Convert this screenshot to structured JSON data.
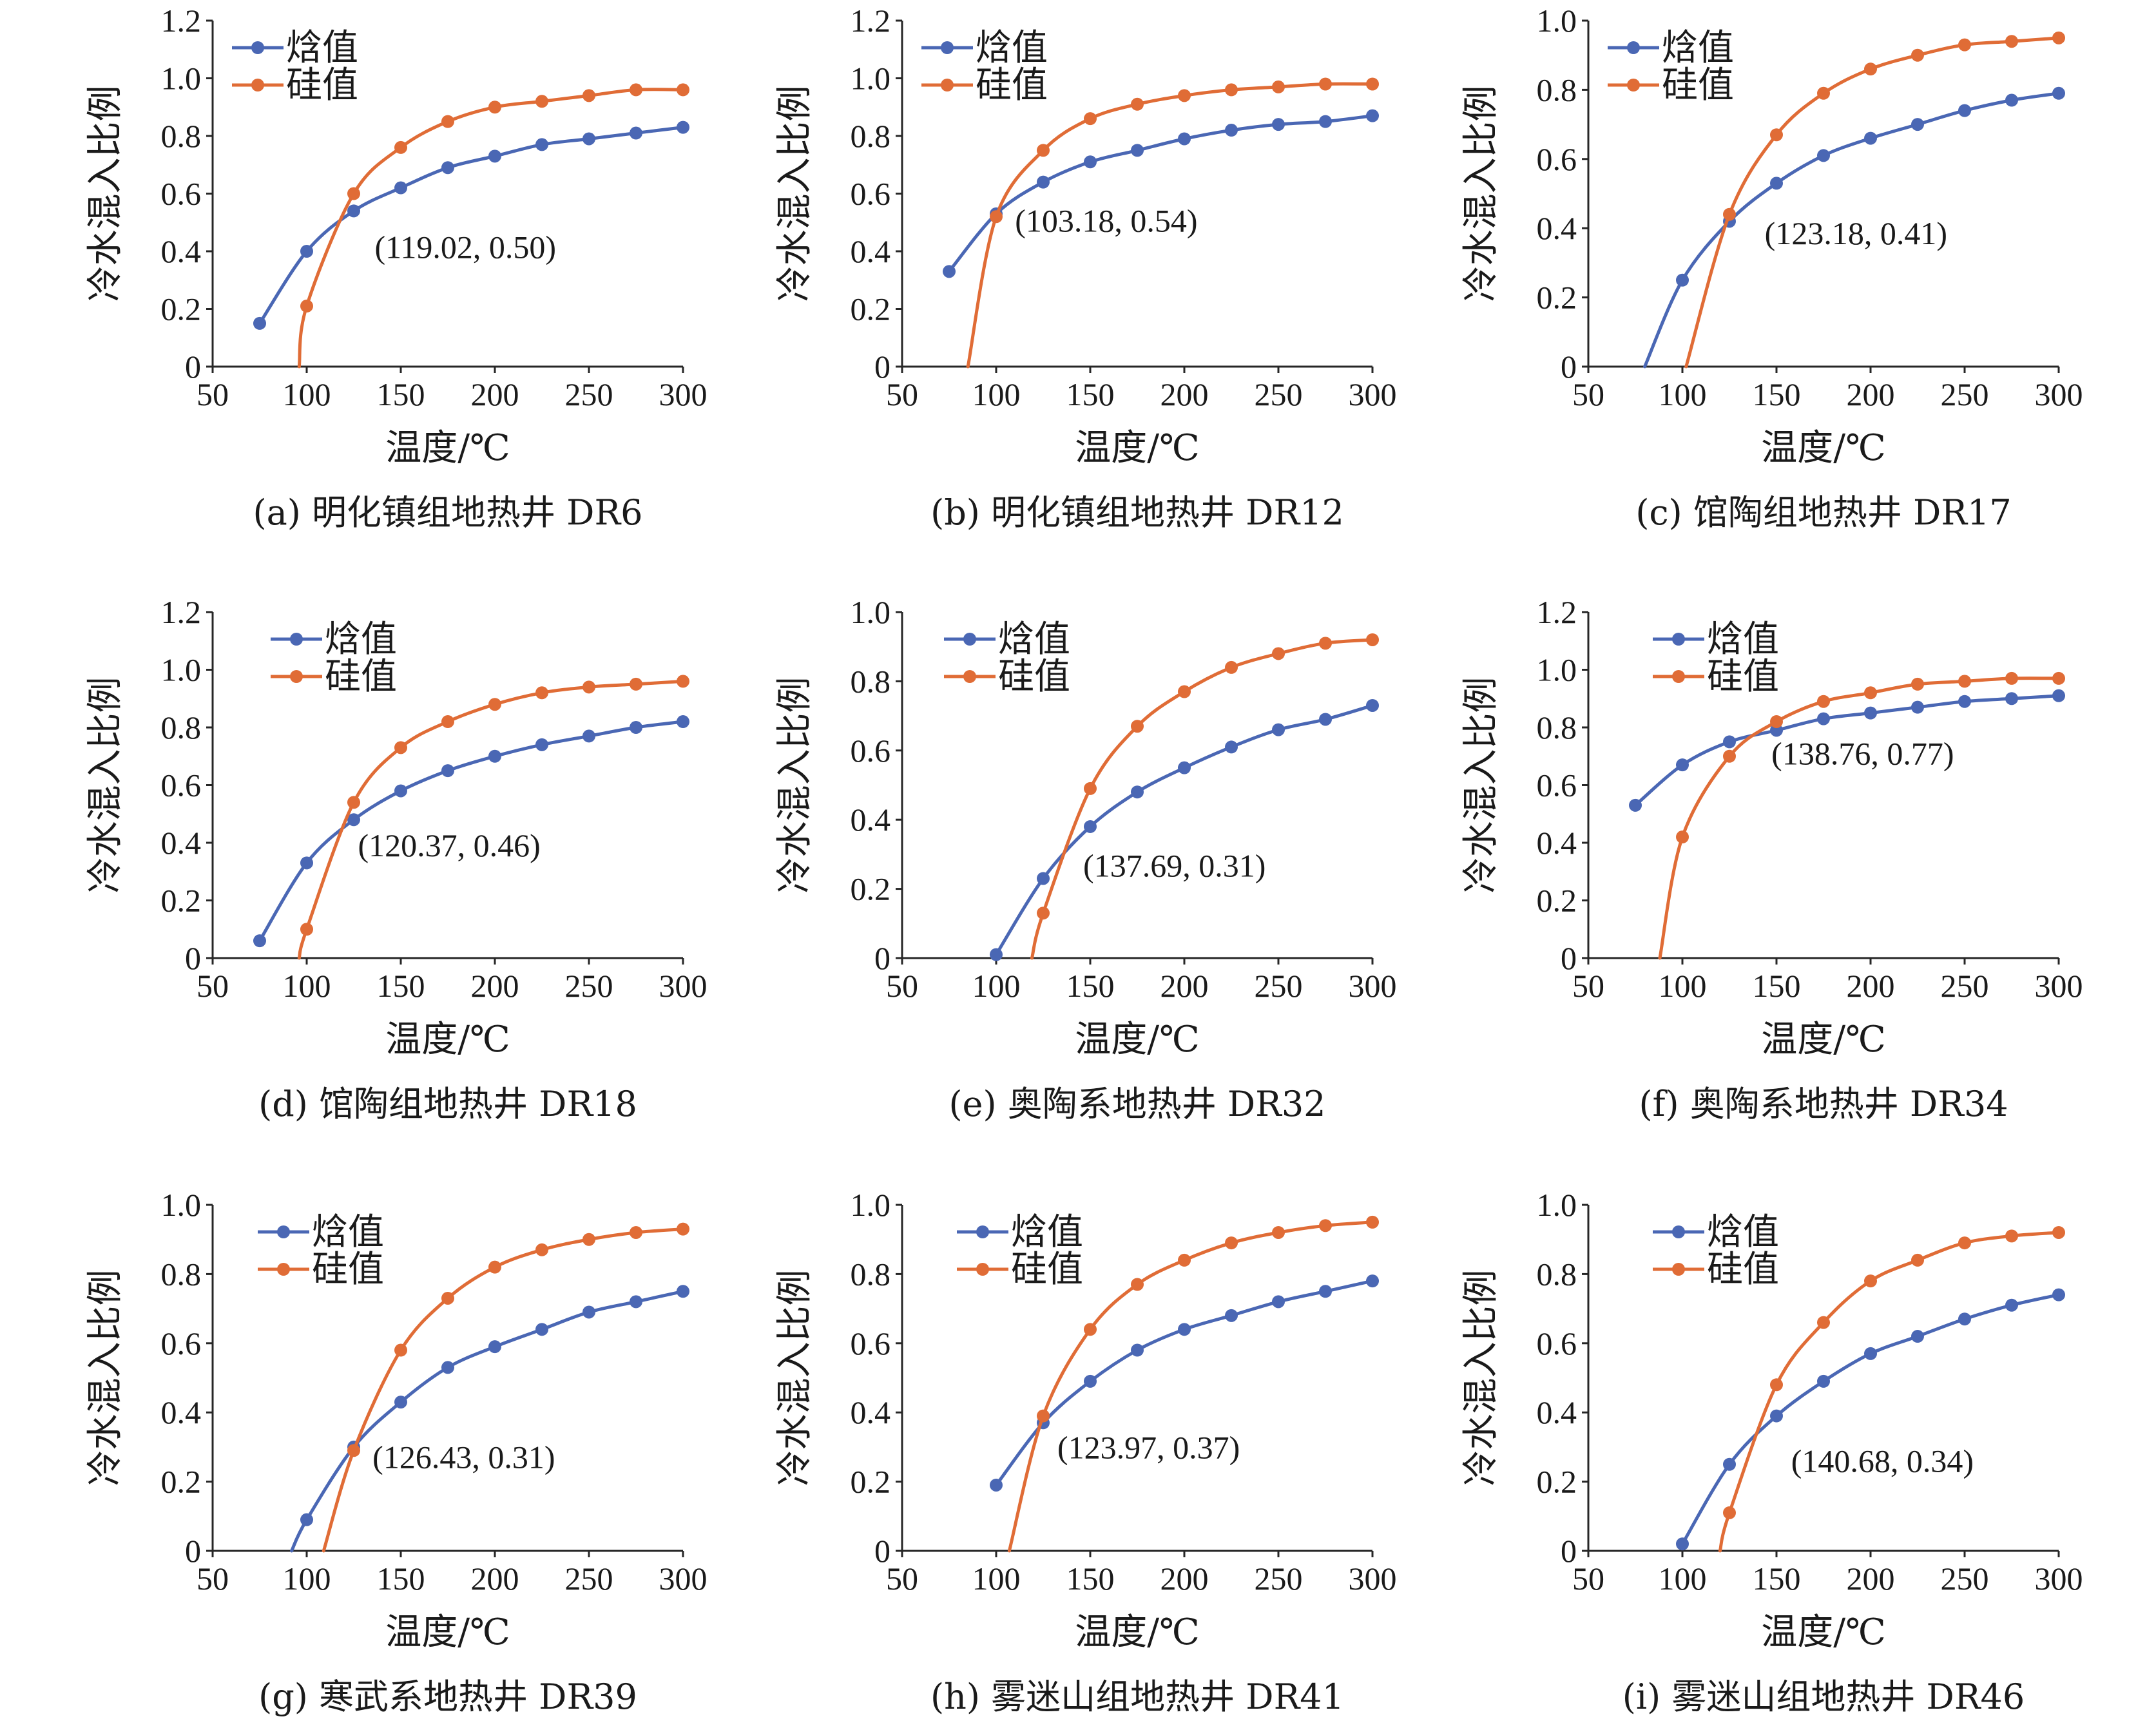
{
  "figure": {
    "colors": {
      "enthalpy": "#4a67b4",
      "silica": "#e06c36",
      "axis": "#262626"
    }
  },
  "chart_data": [
    {
      "type": "line",
      "caption": "(a) 明化镇组地热井 DR6",
      "xlabel": "温度/℃",
      "ylabel": "冷水混入比例",
      "xlim": [
        50,
        300
      ],
      "xticks": [
        "50",
        "100",
        "150",
        "200",
        "250",
        "300"
      ],
      "ylim": [
        0,
        1.2
      ],
      "yticks": [
        "0",
        "0.2",
        "0.4",
        "0.6",
        "0.8",
        "1.0",
        "1.2"
      ],
      "legend": [
        "焓值",
        "硅值"
      ],
      "series": [
        {
          "name": "焓值",
          "color": "#4a67b4",
          "x": [
            75,
            100,
            125,
            150,
            175,
            200,
            225,
            250,
            275,
            300
          ],
          "y": [
            0.15,
            0.4,
            0.54,
            0.62,
            0.69,
            0.73,
            0.77,
            0.79,
            0.81,
            0.83
          ]
        },
        {
          "name": "硅值",
          "color": "#e06c36",
          "line_start": [
            96,
            0.0
          ],
          "x": [
            100,
            125,
            150,
            175,
            200,
            225,
            250,
            275,
            300
          ],
          "y": [
            0.21,
            0.6,
            0.76,
            0.85,
            0.9,
            0.92,
            0.94,
            0.96,
            0.96
          ]
        }
      ],
      "annotation": {
        "text": "(119.02, 0.50)",
        "x": 119.02,
        "y": 0.5
      }
    },
    {
      "type": "line",
      "caption": "(b) 明化镇组地热井 DR12",
      "xlabel": "温度/℃",
      "ylabel": "冷水混入比例",
      "xlim": [
        50,
        300
      ],
      "xticks": [
        "50",
        "100",
        "150",
        "200",
        "250",
        "300"
      ],
      "ylim": [
        0,
        1.2
      ],
      "yticks": [
        "0",
        "0.2",
        "0.4",
        "0.6",
        "0.8",
        "1.0",
        "1.2"
      ],
      "legend": [
        "焓值",
        "硅值"
      ],
      "series": [
        {
          "name": "焓值",
          "color": "#4a67b4",
          "x": [
            75,
            100,
            125,
            150,
            175,
            200,
            225,
            250,
            275,
            300
          ],
          "y": [
            0.33,
            0.53,
            0.64,
            0.71,
            0.75,
            0.79,
            0.82,
            0.84,
            0.85,
            0.87
          ]
        },
        {
          "name": "硅值",
          "color": "#e06c36",
          "line_start": [
            85,
            0.0
          ],
          "x": [
            100,
            125,
            150,
            175,
            200,
            225,
            250,
            275,
            300
          ],
          "y": [
            0.52,
            0.75,
            0.86,
            0.91,
            0.94,
            0.96,
            0.97,
            0.98,
            0.98
          ]
        }
      ],
      "annotation": {
        "text": "(103.18, 0.54)",
        "x": 103.18,
        "y": 0.54
      }
    },
    {
      "type": "line",
      "caption": "(c) 馆陶组地热井 DR17",
      "xlabel": "温度/℃",
      "ylabel": "冷水混入比例",
      "xlim": [
        50,
        300
      ],
      "xticks": [
        "50",
        "100",
        "150",
        "200",
        "250",
        "300"
      ],
      "ylim": [
        0,
        1.0
      ],
      "yticks": [
        "0",
        "0.2",
        "0.4",
        "0.6",
        "0.8",
        "1.0"
      ],
      "legend": [
        "焓值",
        "硅值"
      ],
      "series": [
        {
          "name": "焓值",
          "color": "#4a67b4",
          "line_start": [
            80,
            0.0
          ],
          "x": [
            100,
            125,
            150,
            175,
            200,
            225,
            250,
            275,
            300
          ],
          "y": [
            0.25,
            0.42,
            0.53,
            0.61,
            0.66,
            0.7,
            0.74,
            0.77,
            0.79
          ]
        },
        {
          "name": "硅值",
          "color": "#e06c36",
          "line_start": [
            102,
            0.0
          ],
          "x": [
            125,
            150,
            175,
            200,
            225,
            250,
            275,
            300
          ],
          "y": [
            0.44,
            0.67,
            0.79,
            0.86,
            0.9,
            0.93,
            0.94,
            0.95
          ]
        }
      ],
      "annotation": {
        "text": "(123.18, 0.41)",
        "x": 123.18,
        "y": 0.41
      }
    },
    {
      "type": "line",
      "caption": "(d) 馆陶组地热井 DR18",
      "xlabel": "温度/℃",
      "ylabel": "冷水混入比例",
      "xlim": [
        50,
        300
      ],
      "xticks": [
        "50",
        "100",
        "150",
        "200",
        "250",
        "300"
      ],
      "ylim": [
        0,
        1.2
      ],
      "yticks": [
        "0",
        "0.2",
        "0.4",
        "0.6",
        "0.8",
        "1.0",
        "1.2"
      ],
      "legend": [
        "焓值",
        "硅值"
      ],
      "series": [
        {
          "name": "焓值",
          "color": "#4a67b4",
          "x": [
            75,
            100,
            125,
            150,
            175,
            200,
            225,
            250,
            275,
            300
          ],
          "y": [
            0.06,
            0.33,
            0.48,
            0.58,
            0.65,
            0.7,
            0.74,
            0.77,
            0.8,
            0.82
          ]
        },
        {
          "name": "硅值",
          "color": "#e06c36",
          "line_start": [
            96,
            0.0
          ],
          "x": [
            100,
            125,
            150,
            175,
            200,
            225,
            250,
            275,
            300
          ],
          "y": [
            0.1,
            0.54,
            0.73,
            0.82,
            0.88,
            0.92,
            0.94,
            0.95,
            0.96
          ]
        }
      ],
      "annotation": {
        "text": "(120.37, 0.46)",
        "x": 120.37,
        "y": 0.46
      }
    },
    {
      "type": "line",
      "caption": "(e) 奥陶系地热井 DR32",
      "xlabel": "温度/℃",
      "ylabel": "冷水混入比例",
      "xlim": [
        50,
        300
      ],
      "xticks": [
        "50",
        "100",
        "150",
        "200",
        "250",
        "300"
      ],
      "ylim": [
        0,
        1.0
      ],
      "yticks": [
        "0",
        "0.2",
        "0.4",
        "0.6",
        "0.8",
        "1.0"
      ],
      "legend": [
        "焓值",
        "硅值"
      ],
      "series": [
        {
          "name": "焓值",
          "color": "#4a67b4",
          "x": [
            100,
            125,
            150,
            175,
            200,
            225,
            250,
            275,
            300
          ],
          "y": [
            0.01,
            0.23,
            0.38,
            0.48,
            0.55,
            0.61,
            0.66,
            0.69,
            0.73
          ]
        },
        {
          "name": "硅值",
          "color": "#e06c36",
          "line_start": [
            119,
            0.0
          ],
          "x": [
            125,
            150,
            175,
            200,
            225,
            250,
            275,
            300
          ],
          "y": [
            0.13,
            0.49,
            0.67,
            0.77,
            0.84,
            0.88,
            0.91,
            0.92
          ]
        }
      ],
      "annotation": {
        "text": "(137.69, 0.31)",
        "x": 137.69,
        "y": 0.31
      }
    },
    {
      "type": "line",
      "caption": "(f) 奥陶系地热井 DR34",
      "xlabel": "温度/℃",
      "ylabel": "冷水混入比例",
      "xlim": [
        50,
        300
      ],
      "xticks": [
        "50",
        "100",
        "150",
        "200",
        "250",
        "300"
      ],
      "ylim": [
        0,
        1.2
      ],
      "yticks": [
        "0",
        "0.2",
        "0.4",
        "0.6",
        "0.8",
        "1.0",
        "1.2"
      ],
      "legend": [
        "焓值",
        "硅值"
      ],
      "series": [
        {
          "name": "焓值",
          "color": "#4a67b4",
          "x": [
            75,
            100,
            125,
            150,
            175,
            200,
            225,
            250,
            275,
            300
          ],
          "y": [
            0.53,
            0.67,
            0.75,
            0.79,
            0.83,
            0.85,
            0.87,
            0.89,
            0.9,
            0.91
          ]
        },
        {
          "name": "硅值",
          "color": "#e06c36",
          "line_start": [
            88,
            0.0
          ],
          "x": [
            100,
            125,
            150,
            175,
            200,
            225,
            250,
            275,
            300
          ],
          "y": [
            0.42,
            0.7,
            0.82,
            0.89,
            0.92,
            0.95,
            0.96,
            0.97,
            0.97
          ]
        }
      ],
      "annotation": {
        "text": "(138.76, 0.77)",
        "x": 138.76,
        "y": 0.77
      }
    },
    {
      "type": "line",
      "caption": "(g) 寒武系地热井 DR39",
      "xlabel": "温度/℃",
      "ylabel": "冷水混入比例",
      "xlim": [
        50,
        300
      ],
      "xticks": [
        "50",
        "100",
        "150",
        "200",
        "250",
        "300"
      ],
      "ylim": [
        0,
        1.0
      ],
      "yticks": [
        "0",
        "0.2",
        "0.4",
        "0.6",
        "0.8",
        "1.0"
      ],
      "legend": [
        "焓值",
        "硅值"
      ],
      "series": [
        {
          "name": "焓值",
          "color": "#4a67b4",
          "line_start": [
            92,
            0.0
          ],
          "x": [
            100,
            125,
            150,
            175,
            200,
            225,
            250,
            275,
            300
          ],
          "y": [
            0.09,
            0.3,
            0.43,
            0.53,
            0.59,
            0.64,
            0.69,
            0.72,
            0.75
          ]
        },
        {
          "name": "硅值",
          "color": "#e06c36",
          "line_start": [
            109,
            0.0
          ],
          "x": [
            125,
            150,
            175,
            200,
            225,
            250,
            275,
            300
          ],
          "y": [
            0.29,
            0.58,
            0.73,
            0.82,
            0.87,
            0.9,
            0.92,
            0.93
          ]
        }
      ],
      "annotation": {
        "text": "(126.43, 0.31)",
        "x": 126.43,
        "y": 0.31
      }
    },
    {
      "type": "line",
      "caption": "(h) 雾迷山组地热井 DR41",
      "xlabel": "温度/℃",
      "ylabel": "冷水混入比例",
      "xlim": [
        50,
        300
      ],
      "xticks": [
        "50",
        "100",
        "150",
        "200",
        "250",
        "300"
      ],
      "ylim": [
        0,
        1.0
      ],
      "yticks": [
        "0",
        "0.2",
        "0.4",
        "0.6",
        "0.8",
        "1.0"
      ],
      "legend": [
        "焓值",
        "硅值"
      ],
      "series": [
        {
          "name": "焓值",
          "color": "#4a67b4",
          "x": [
            100,
            125,
            150,
            175,
            200,
            225,
            250,
            275,
            300
          ],
          "y": [
            0.19,
            0.37,
            0.49,
            0.58,
            0.64,
            0.68,
            0.72,
            0.75,
            0.78
          ]
        },
        {
          "name": "硅值",
          "color": "#e06c36",
          "line_start": [
            107,
            0.0
          ],
          "x": [
            125,
            150,
            175,
            200,
            225,
            250,
            275,
            300
          ],
          "y": [
            0.39,
            0.64,
            0.77,
            0.84,
            0.89,
            0.92,
            0.94,
            0.95
          ]
        }
      ],
      "annotation": {
        "text": "(123.97, 0.37)",
        "x": 123.97,
        "y": 0.37
      }
    },
    {
      "type": "line",
      "caption": "(i) 雾迷山组地热井 DR46",
      "xlabel": "温度/℃",
      "ylabel": "冷水混入比例",
      "xlim": [
        50,
        300
      ],
      "xticks": [
        "50",
        "100",
        "150",
        "200",
        "250",
        "300"
      ],
      "ylim": [
        0,
        1.0
      ],
      "yticks": [
        "0",
        "0.2",
        "0.4",
        "0.6",
        "0.8",
        "1.0"
      ],
      "legend": [
        "焓值",
        "硅值"
      ],
      "series": [
        {
          "name": "焓值",
          "color": "#4a67b4",
          "x": [
            100,
            125,
            150,
            175,
            200,
            225,
            250,
            275,
            300
          ],
          "y": [
            0.02,
            0.25,
            0.39,
            0.49,
            0.57,
            0.62,
            0.67,
            0.71,
            0.74
          ]
        },
        {
          "name": "硅值",
          "color": "#e06c36",
          "line_start": [
            120,
            0.0
          ],
          "x": [
            125,
            150,
            175,
            200,
            225,
            250,
            275,
            300
          ],
          "y": [
            0.11,
            0.48,
            0.66,
            0.78,
            0.84,
            0.89,
            0.91,
            0.92
          ]
        }
      ],
      "annotation": {
        "text": "(140.68, 0.34)",
        "x": 140.68,
        "y": 0.34
      }
    }
  ]
}
